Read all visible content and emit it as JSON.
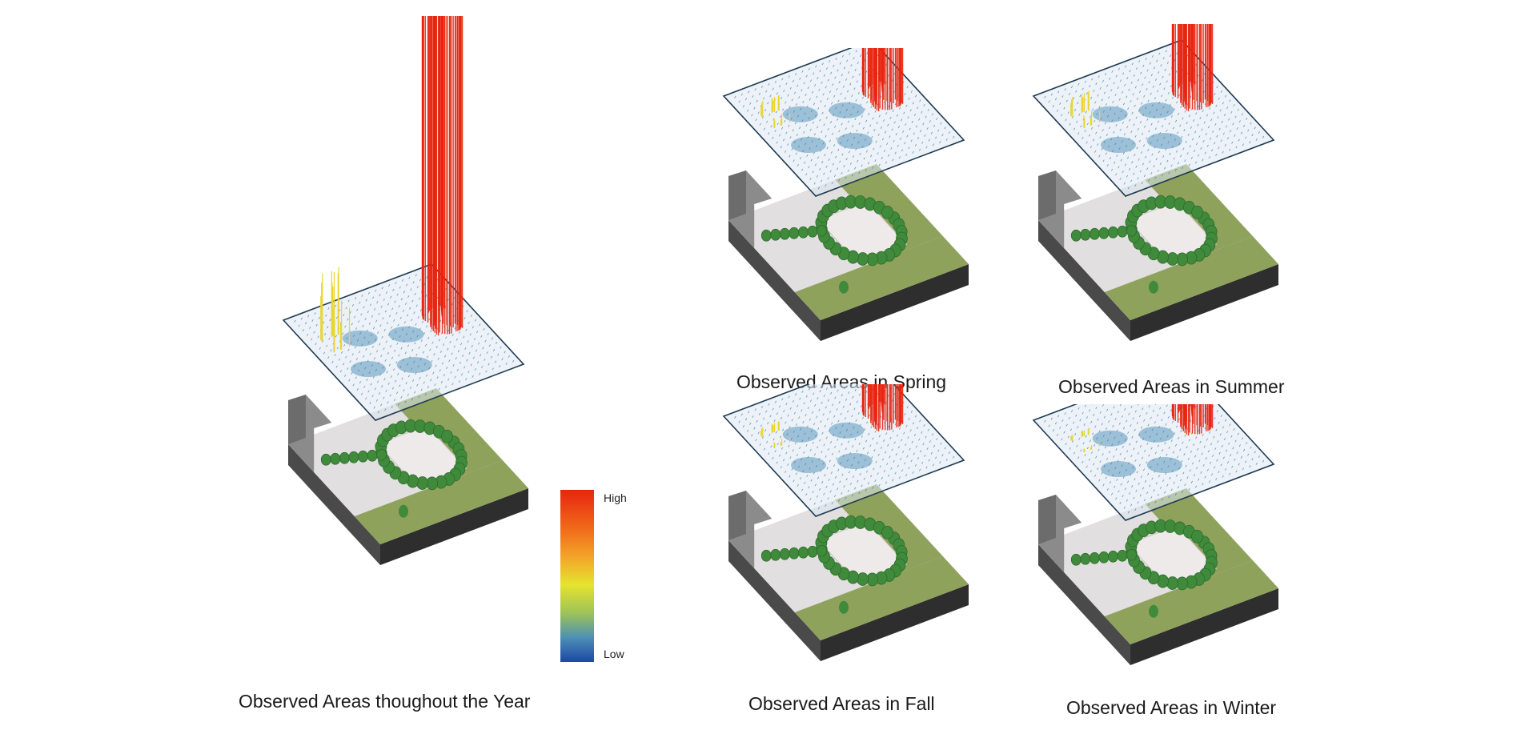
{
  "colors": {
    "high": "#e8250f",
    "mid": "#e6e42e",
    "low": "#1f46a6",
    "grass": "#8fa25c",
    "base_dark": "#3e3e3e",
    "pavement": "#e2dfe0",
    "trees": "#3f8a3b",
    "grid_lines": "#1f5a7a"
  },
  "legend": {
    "high": "High",
    "low": "Low"
  },
  "panels": [
    {
      "key": "year",
      "caption": "Observed Areas thoughout the Year",
      "intensity": 1.0
    },
    {
      "key": "spring",
      "caption": "Observed Areas in Spring",
      "intensity": 0.55
    },
    {
      "key": "summer",
      "caption": "Observed Areas in Summer",
      "intensity": 0.6
    },
    {
      "key": "fall",
      "caption": "Observed Areas in Fall",
      "intensity": 0.45
    },
    {
      "key": "winter",
      "caption": "Observed Areas in Winter",
      "intensity": 0.35
    }
  ]
}
